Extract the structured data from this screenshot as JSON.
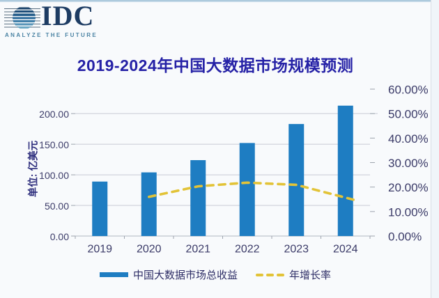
{
  "logo": {
    "name": "IDC",
    "tagline": "ANALYZE THE FUTURE",
    "wordmark_color": "#1d3c63",
    "tagline_color": "#4a83a3"
  },
  "header": {
    "title": "2019-2024年中国大数据市场规模预测",
    "title_color": "#2521a6"
  },
  "chart_data": {
    "type": "combo-bar-line",
    "title": "2019-2024年中国大数据市场规模预测",
    "categories": [
      "2019",
      "2020",
      "2021",
      "2022",
      "2023",
      "2024"
    ],
    "series": [
      {
        "name": "中国大数据市场总收益",
        "chart_type": "bar",
        "axis": "left",
        "unit": "亿美元",
        "color": "#1e7dc2",
        "values": [
          89,
          104,
          124,
          152,
          183,
          213
        ]
      },
      {
        "name": "年增长率",
        "chart_type": "line",
        "line_style": "dashed",
        "axis": "right",
        "unit": "%",
        "color": "#e2c337",
        "values": [
          null,
          16.0,
          20.3,
          21.8,
          20.9,
          15.7
        ]
      }
    ],
    "left_axis": {
      "title": "单位: 亿美元",
      "min": 0,
      "max": 240,
      "tick_values": [
        0,
        50,
        100,
        150,
        200
      ],
      "tick_labels": [
        "0.00",
        "50.00",
        "100.00",
        "150.00",
        "200.00"
      ]
    },
    "right_axis": {
      "min": 0,
      "max": 60,
      "tick_values": [
        0,
        10,
        20,
        30,
        40,
        50,
        60
      ],
      "tick_labels": [
        "0.00%",
        "10.00%",
        "20.00%",
        "30.00%",
        "40.00%",
        "50.00%",
        "60.00%"
      ]
    },
    "grid": "horizontal",
    "legend_position": "bottom",
    "tick_text_color": "#3b3b68",
    "gridline_color": "#c7cbd4"
  },
  "legend": {
    "items": [
      {
        "label": "中国大数据市场总收益",
        "swatch": "bar"
      },
      {
        "label": "年增长率",
        "swatch": "dashed-line"
      }
    ]
  }
}
